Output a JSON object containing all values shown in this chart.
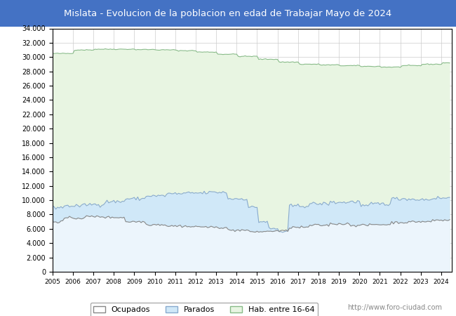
{
  "title": "Mislata - Evolucion de la poblacion en edad de Trabajar Mayo de 2024",
  "title_bg": "#4472c4",
  "title_color": "white",
  "hab_color": "#e8f5e2",
  "hab_edge": "#88bb88",
  "parados_color": "#d0e8f8",
  "parados_edge": "#88aace",
  "ocupados_color": "#e8e8e8",
  "ocupados_edge": "#888888",
  "ylim": [
    0,
    34000
  ],
  "yticks": [
    0,
    2000,
    4000,
    6000,
    8000,
    10000,
    12000,
    14000,
    16000,
    18000,
    20000,
    22000,
    24000,
    26000,
    28000,
    30000,
    32000,
    34000
  ],
  "ytick_labels": [
    "0",
    "2.000",
    "4.000",
    "6.000",
    "8.000",
    "10.000",
    "12.000",
    "14.000",
    "16.000",
    "18.000",
    "20.000",
    "22.000",
    "24.000",
    "26.000",
    "28.000",
    "30.000",
    "32.000",
    "34.000"
  ],
  "grid_color": "#cccccc",
  "watermark": "http://www.foro-ciudad.com",
  "legend_labels": [
    "Ocupados",
    "Parados",
    "Hab. entre 16-64"
  ],
  "plot_bg": "#ffffff",
  "axis_border_color": "#000000",
  "xmin": 2005.0,
  "xmax": 2024.5
}
